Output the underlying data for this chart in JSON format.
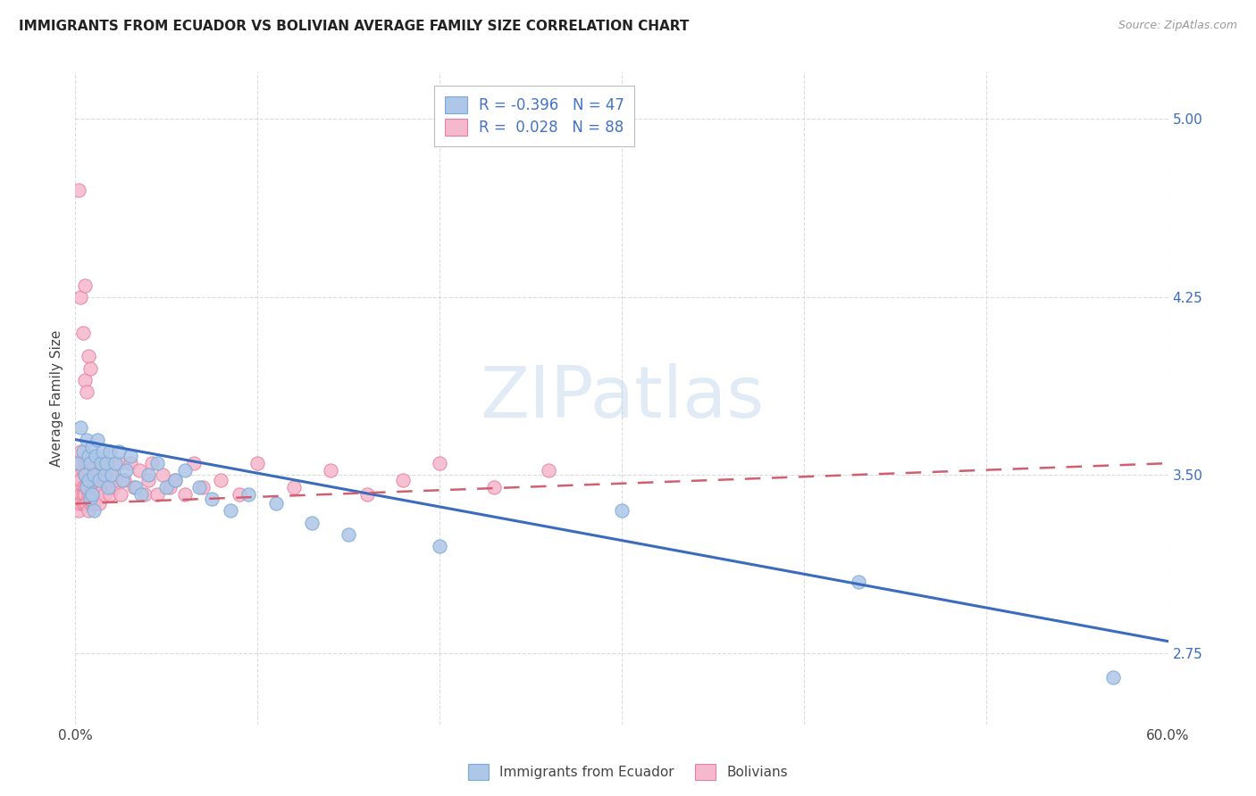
{
  "title": "IMMIGRANTS FROM ECUADOR VS BOLIVIAN AVERAGE FAMILY SIZE CORRELATION CHART",
  "source": "Source: ZipAtlas.com",
  "ylabel": "Average Family Size",
  "xlim": [
    0,
    0.6
  ],
  "ylim": [
    2.45,
    5.2
  ],
  "yticks": [
    2.75,
    3.5,
    4.25,
    5.0
  ],
  "xticks": [
    0.0,
    0.1,
    0.2,
    0.3,
    0.4,
    0.5,
    0.6
  ],
  "xtick_labels": [
    "0.0%",
    "",
    "",
    "",
    "",
    "",
    "60.0%"
  ],
  "ytick_labels_right": [
    "2.75",
    "3.50",
    "4.25",
    "5.00"
  ],
  "ecuador_color": "#aec6e8",
  "ecuador_edge": "#7aaad4",
  "bolivia_color": "#f5b8cc",
  "bolivia_edge": "#e8809c",
  "ecuador_line_color": "#3a6bbf",
  "bolivia_line_color": "#d06070",
  "watermark": "ZIPatlas",
  "legend_color_text": "#4472c4",
  "ec_line_x0": 0.0,
  "ec_line_x1": 0.6,
  "ec_line_y0": 3.65,
  "ec_line_y1": 2.8,
  "bo_line_x0": 0.0,
  "bo_line_x1": 0.6,
  "bo_line_y0": 3.38,
  "bo_line_y1": 3.55,
  "ecuador_scatter_x": [
    0.002,
    0.003,
    0.004,
    0.005,
    0.006,
    0.006,
    0.007,
    0.007,
    0.008,
    0.008,
    0.009,
    0.009,
    0.01,
    0.01,
    0.011,
    0.012,
    0.013,
    0.014,
    0.015,
    0.016,
    0.017,
    0.018,
    0.019,
    0.02,
    0.022,
    0.024,
    0.026,
    0.028,
    0.03,
    0.033,
    0.036,
    0.04,
    0.045,
    0.05,
    0.055,
    0.06,
    0.068,
    0.075,
    0.085,
    0.095,
    0.11,
    0.13,
    0.15,
    0.2,
    0.3,
    0.43,
    0.57
  ],
  "ecuador_scatter_y": [
    3.55,
    3.7,
    3.6,
    3.5,
    3.65,
    3.45,
    3.58,
    3.48,
    3.55,
    3.4,
    3.62,
    3.42,
    3.5,
    3.35,
    3.58,
    3.65,
    3.48,
    3.55,
    3.6,
    3.5,
    3.55,
    3.45,
    3.6,
    3.5,
    3.55,
    3.6,
    3.48,
    3.52,
    3.58,
    3.45,
    3.42,
    3.5,
    3.55,
    3.45,
    3.48,
    3.52,
    3.45,
    3.4,
    3.35,
    3.42,
    3.38,
    3.3,
    3.25,
    3.2,
    3.35,
    3.05,
    2.65
  ],
  "bolivia_scatter_x": [
    0.001,
    0.001,
    0.002,
    0.002,
    0.002,
    0.003,
    0.003,
    0.003,
    0.003,
    0.004,
    0.004,
    0.004,
    0.004,
    0.005,
    0.005,
    0.005,
    0.005,
    0.005,
    0.006,
    0.006,
    0.006,
    0.006,
    0.007,
    0.007,
    0.007,
    0.007,
    0.008,
    0.008,
    0.008,
    0.008,
    0.009,
    0.009,
    0.009,
    0.009,
    0.01,
    0.01,
    0.01,
    0.01,
    0.011,
    0.011,
    0.012,
    0.012,
    0.013,
    0.013,
    0.014,
    0.015,
    0.015,
    0.016,
    0.017,
    0.018,
    0.019,
    0.02,
    0.021,
    0.022,
    0.024,
    0.025,
    0.027,
    0.03,
    0.032,
    0.035,
    0.038,
    0.04,
    0.042,
    0.045,
    0.048,
    0.052,
    0.055,
    0.06,
    0.065,
    0.07,
    0.08,
    0.09,
    0.1,
    0.12,
    0.14,
    0.16,
    0.18,
    0.2,
    0.23,
    0.26,
    0.002,
    0.003,
    0.004,
    0.005,
    0.005,
    0.006,
    0.007,
    0.008
  ],
  "bolivia_scatter_y": [
    3.45,
    3.38,
    3.5,
    3.35,
    3.55,
    3.42,
    3.48,
    3.38,
    3.6,
    3.45,
    3.52,
    3.38,
    3.42,
    3.55,
    3.45,
    3.38,
    3.5,
    3.42,
    3.55,
    3.45,
    3.38,
    3.5,
    3.55,
    3.42,
    3.48,
    3.35,
    3.52,
    3.42,
    3.38,
    3.48,
    3.55,
    3.42,
    3.48,
    3.38,
    3.52,
    3.45,
    3.38,
    3.55,
    3.45,
    3.42,
    3.5,
    3.42,
    3.48,
    3.38,
    3.55,
    3.45,
    3.52,
    3.42,
    3.48,
    3.55,
    3.42,
    3.5,
    3.45,
    3.48,
    3.55,
    3.42,
    3.48,
    3.55,
    3.45,
    3.52,
    3.42,
    3.48,
    3.55,
    3.42,
    3.5,
    3.45,
    3.48,
    3.42,
    3.55,
    3.45,
    3.48,
    3.42,
    3.55,
    3.45,
    3.52,
    3.42,
    3.48,
    3.55,
    3.45,
    3.52,
    4.7,
    4.25,
    4.1,
    3.9,
    4.3,
    3.85,
    4.0,
    3.95
  ]
}
